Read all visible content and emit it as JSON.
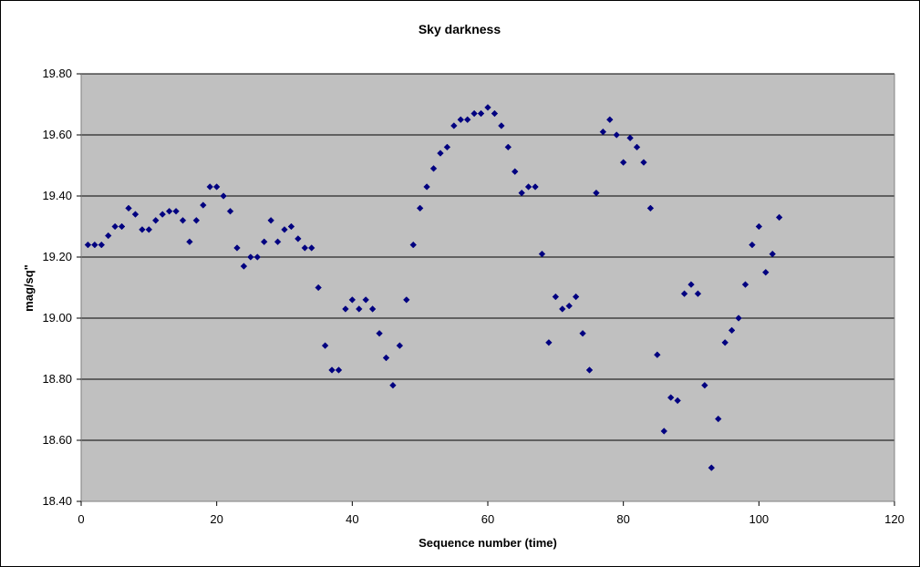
{
  "chart_data": {
    "type": "scatter",
    "title": "Sky darkness",
    "xlabel": "Sequence number (time)",
    "ylabel": "mag/sq\"",
    "xlim": [
      0,
      120
    ],
    "ylim": [
      18.4,
      19.8
    ],
    "x_ticks": [
      0,
      20,
      40,
      60,
      80,
      100,
      120
    ],
    "y_ticks": [
      18.4,
      18.6,
      18.8,
      19.0,
      19.2,
      19.4,
      19.6,
      19.8
    ],
    "x_tick_labels": [
      "0",
      "20",
      "40",
      "60",
      "80",
      "100",
      "120"
    ],
    "y_tick_labels": [
      "18.40",
      "18.60",
      "18.80",
      "19.00",
      "19.20",
      "19.40",
      "19.60",
      "19.80"
    ],
    "grid": "horizontal",
    "plot_background": "#c0c0c0",
    "marker_color": "#000080",
    "series": [
      {
        "x": [
          1,
          2,
          3,
          4,
          5,
          6,
          7,
          8,
          9,
          10,
          11,
          12,
          13,
          14,
          15,
          16,
          17,
          18,
          19,
          20,
          21,
          22,
          23,
          24,
          25,
          26,
          27,
          28,
          29,
          30,
          31,
          32,
          33,
          34,
          35,
          36,
          37,
          38,
          39,
          40,
          41,
          42,
          43,
          44,
          45,
          46,
          47,
          48,
          49,
          50,
          51,
          52,
          53,
          54,
          55,
          56,
          57,
          58,
          59,
          60,
          61,
          62,
          63,
          64,
          65,
          66,
          67,
          68,
          69,
          70,
          71,
          72,
          73,
          74,
          75,
          76,
          77,
          78,
          79,
          80,
          81,
          82,
          83,
          84,
          85,
          86,
          87,
          88,
          89,
          90,
          91,
          92,
          93,
          94,
          95,
          96,
          97,
          98,
          99,
          100,
          101,
          102,
          103
        ],
        "y": [
          19.24,
          19.24,
          19.24,
          19.27,
          19.3,
          19.3,
          19.36,
          19.34,
          19.29,
          19.29,
          19.32,
          19.34,
          19.35,
          19.35,
          19.32,
          19.25,
          19.32,
          19.37,
          19.43,
          19.43,
          19.4,
          19.35,
          19.23,
          19.17,
          19.2,
          19.2,
          19.25,
          19.32,
          19.25,
          19.29,
          19.3,
          19.26,
          19.23,
          19.23,
          19.1,
          18.91,
          18.83,
          18.83,
          19.03,
          19.06,
          19.03,
          19.06,
          19.03,
          18.95,
          18.87,
          18.78,
          18.91,
          19.06,
          19.24,
          19.36,
          19.43,
          19.49,
          19.54,
          19.56,
          19.63,
          19.65,
          19.65,
          19.67,
          19.67,
          19.69,
          19.67,
          19.63,
          19.56,
          19.48,
          19.41,
          19.43,
          19.43,
          19.21,
          18.92,
          19.07,
          19.03,
          19.04,
          19.07,
          18.95,
          18.83,
          19.41,
          19.61,
          19.65,
          19.6,
          19.51,
          19.59,
          19.56,
          19.51,
          19.36,
          18.88,
          18.63,
          18.74,
          18.73,
          19.08,
          19.11,
          19.08,
          18.78,
          18.51,
          18.67,
          18.92,
          18.96,
          19.0,
          19.11,
          19.24,
          19.3,
          19.15,
          19.21,
          19.33
        ]
      }
    ]
  }
}
